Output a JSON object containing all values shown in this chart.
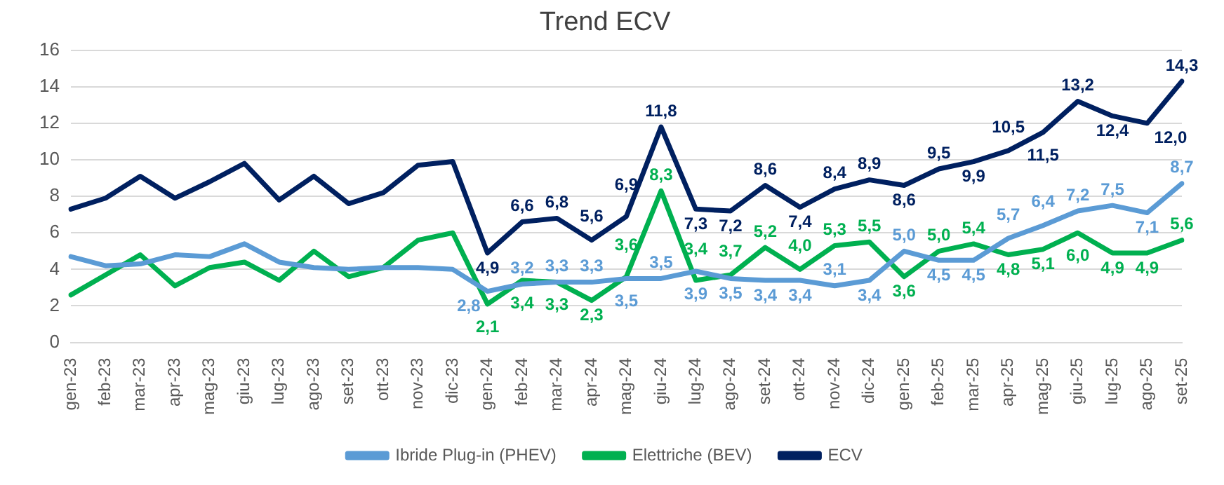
{
  "chart_data": {
    "type": "line",
    "title": "Trend ECV",
    "categories": [
      "gen-23",
      "feb-23",
      "mar-23",
      "apr-23",
      "mag-23",
      "giu-23",
      "lug-23",
      "ago-23",
      "set-23",
      "ott-23",
      "nov-23",
      "dic-23",
      "gen-24",
      "feb-24",
      "mar-24",
      "apr-24",
      "mag-24",
      "giu-24",
      "lug-24",
      "ago-24",
      "set-24",
      "ott-24",
      "nov-24",
      "dic-24",
      "gen-25",
      "feb-25",
      "mar-25",
      "apr-25",
      "mag-25",
      "giu-25",
      "lug-25",
      "ago-25",
      "set-25"
    ],
    "series": [
      {
        "name": "Ibride Plug-in (PHEV)",
        "color": "#5b9bd5",
        "values": [
          4.7,
          4.2,
          4.3,
          4.8,
          4.7,
          5.4,
          4.4,
          4.1,
          4.0,
          4.1,
          4.1,
          4.0,
          2.8,
          3.2,
          3.3,
          3.3,
          3.5,
          3.5,
          3.9,
          3.5,
          3.4,
          3.4,
          3.1,
          3.4,
          5.0,
          4.5,
          4.5,
          5.7,
          6.4,
          7.2,
          7.5,
          7.1,
          8.7
        ],
        "value_labels": [
          null,
          null,
          null,
          null,
          null,
          null,
          null,
          null,
          null,
          null,
          null,
          null,
          "2,8",
          "3,2",
          "3,3",
          "3,3",
          "3,5",
          "3,5",
          "3,9",
          "3,5",
          "3,4",
          "3,4",
          "3,1",
          "3,4",
          "5,0",
          "4,5",
          "4,5",
          "5,7",
          "6,4",
          "7,2",
          "7,5",
          "7,1",
          "8,7"
        ]
      },
      {
        "name": "Elettriche (BEV)",
        "color": "#00b050",
        "values": [
          2.6,
          3.7,
          4.8,
          3.1,
          4.1,
          4.4,
          3.4,
          5.0,
          3.6,
          4.1,
          5.6,
          6.0,
          2.1,
          3.4,
          3.3,
          2.3,
          3.6,
          8.3,
          3.4,
          3.7,
          5.2,
          4.0,
          5.3,
          5.5,
          3.6,
          5.0,
          5.4,
          4.8,
          5.1,
          6.0,
          4.9,
          4.9,
          5.6
        ],
        "value_labels": [
          null,
          null,
          null,
          null,
          null,
          null,
          null,
          null,
          null,
          null,
          null,
          null,
          "2,1",
          "3,4",
          "3,3",
          "2,3",
          "3,6",
          "8,3",
          "3,4",
          "3,7",
          "5,2",
          "4,0",
          "5,3",
          "5,5",
          "3,6",
          "5,0",
          "5,4",
          "4,8",
          "5,1",
          "6,0",
          "4,9",
          "4,9",
          "5,6"
        ]
      },
      {
        "name": "ECV",
        "color": "#002060",
        "values": [
          7.3,
          7.9,
          9.1,
          7.9,
          8.8,
          9.8,
          7.8,
          9.1,
          7.6,
          8.2,
          9.7,
          9.9,
          4.9,
          6.6,
          6.8,
          5.6,
          6.9,
          11.8,
          7.3,
          7.2,
          8.6,
          7.4,
          8.4,
          8.9,
          8.6,
          9.5,
          9.9,
          10.5,
          11.5,
          13.2,
          12.4,
          12.0,
          14.3
        ],
        "value_labels": [
          null,
          null,
          null,
          null,
          null,
          null,
          null,
          null,
          null,
          null,
          null,
          null,
          "4,9",
          "6,6",
          "6,8",
          "5,6",
          "6,9",
          "11,8",
          "7,3",
          "7,2",
          "8,6",
          "7,4",
          "8,4",
          "8,9",
          "8,6",
          "9,5",
          "9,9",
          "10,5",
          "11,5",
          "13,2",
          "12,4",
          "12,0",
          "14,3"
        ]
      }
    ],
    "ylim": [
      0,
      16
    ],
    "yticks": [
      0,
      2,
      4,
      6,
      8,
      10,
      12,
      14,
      16
    ],
    "grid": "y",
    "legend": "bottom",
    "marker": "none",
    "line_style": "solid"
  }
}
